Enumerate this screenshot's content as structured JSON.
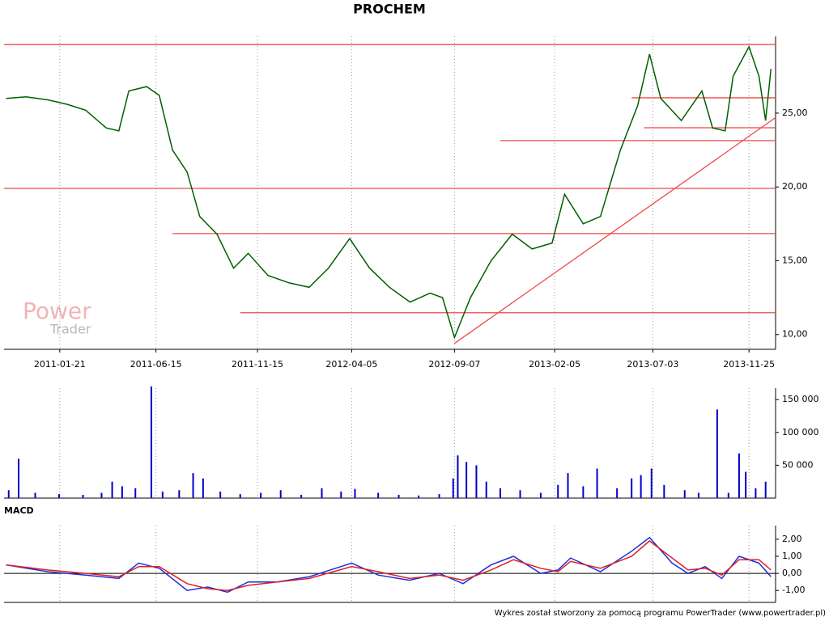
{
  "chart_data": [
    {
      "type": "line",
      "title": "PROCHEM",
      "color": "#006000",
      "xlim": [
        "2010-10-29",
        "2014-01-04"
      ],
      "xticks": [
        "2011-01-21",
        "2011-06-15",
        "2011-11-15",
        "2012-04-05",
        "2012-09-07",
        "2013-02-05",
        "2013-07-03",
        "2013-11-25"
      ],
      "ylim": [
        9,
        30.2
      ],
      "yticks": [
        {
          "value": 10,
          "label": "10,00"
        },
        {
          "value": 15,
          "label": "15,00"
        },
        {
          "value": 20,
          "label": "20,00"
        },
        {
          "value": 25,
          "label": "25,00"
        }
      ],
      "x": [
        "2010-11-01",
        "2010-12-01",
        "2011-01-03",
        "2011-02-01",
        "2011-03-01",
        "2011-04-01",
        "2011-04-20",
        "2011-05-05",
        "2011-06-01",
        "2011-06-20",
        "2011-07-10",
        "2011-08-01",
        "2011-08-20",
        "2011-09-15",
        "2011-10-10",
        "2011-11-01",
        "2011-12-01",
        "2012-01-02",
        "2012-02-01",
        "2012-03-01",
        "2012-04-02",
        "2012-05-02",
        "2012-06-01",
        "2012-07-02",
        "2012-08-01",
        "2012-08-20",
        "2012-09-07",
        "2012-10-01",
        "2012-11-01",
        "2012-12-03",
        "2013-01-02",
        "2013-02-01",
        "2013-02-20",
        "2013-03-20",
        "2013-04-15",
        "2013-05-15",
        "2013-06-10",
        "2013-06-28",
        "2013-07-15",
        "2013-08-15",
        "2013-09-15",
        "2013-10-01",
        "2013-10-20",
        "2013-11-01",
        "2013-11-25",
        "2013-12-10",
        "2013-12-20",
        "2013-12-28"
      ],
      "values": [
        26.0,
        26.1,
        25.9,
        25.6,
        25.2,
        24.0,
        23.8,
        26.5,
        26.8,
        26.2,
        22.5,
        21.0,
        18.0,
        16.8,
        14.5,
        15.5,
        14.0,
        13.5,
        13.2,
        14.5,
        16.5,
        14.5,
        13.2,
        12.2,
        12.8,
        12.5,
        9.8,
        12.5,
        15.0,
        16.8,
        15.8,
        16.2,
        19.5,
        17.5,
        18.0,
        22.5,
        25.5,
        29.0,
        26.0,
        24.5,
        26.5,
        24.0,
        23.8,
        27.5,
        29.5,
        27.5,
        24.5,
        28.0
      ],
      "annotation_color": "#f04848",
      "hlines": [
        {
          "value": 29.65,
          "from": "2010-10-29",
          "to": "2014-01-04"
        },
        {
          "value": 19.9,
          "from": "2010-10-29",
          "to": "2014-01-04"
        },
        {
          "value": 16.84,
          "from": "2011-07-10",
          "to": "2014-01-04"
        },
        {
          "value": 11.48,
          "from": "2011-10-20",
          "to": "2014-01-04"
        },
        {
          "value": 26.04,
          "from": "2013-06-01",
          "to": "2014-01-04"
        },
        {
          "value": 24.01,
          "from": "2013-06-20",
          "to": "2014-01-04"
        },
        {
          "value": 23.14,
          "from": "2012-11-15",
          "to": "2014-01-04"
        }
      ],
      "trendline": {
        "x": [
          "2012-09-07",
          "2014-01-04"
        ],
        "values": [
          9.4,
          24.7
        ]
      }
    },
    {
      "type": "bar",
      "color": "#0000cc",
      "ylim": [
        0,
        167500
      ],
      "yticks": [
        {
          "value": 50000,
          "label": "50 000"
        },
        {
          "value": 100000,
          "label": "100 000"
        },
        {
          "value": 150000,
          "label": "150 000"
        }
      ],
      "x": [
        "2010-11-05",
        "2010-11-20",
        "2010-12-15",
        "2011-01-20",
        "2011-02-25",
        "2011-03-25",
        "2011-04-10",
        "2011-04-25",
        "2011-05-15",
        "2011-06-08",
        "2011-06-25",
        "2011-07-20",
        "2011-08-10",
        "2011-08-25",
        "2011-09-20",
        "2011-10-20",
        "2011-11-20",
        "2011-12-20",
        "2012-01-20",
        "2012-02-20",
        "2012-03-20",
        "2012-04-10",
        "2012-05-15",
        "2012-06-15",
        "2012-07-15",
        "2012-08-15",
        "2012-09-05",
        "2012-09-12",
        "2012-09-25",
        "2012-10-10",
        "2012-10-25",
        "2012-11-15",
        "2012-12-15",
        "2013-01-15",
        "2013-02-10",
        "2013-02-25",
        "2013-03-20",
        "2013-04-10",
        "2013-05-10",
        "2013-06-01",
        "2013-06-15",
        "2013-07-01",
        "2013-07-20",
        "2013-08-20",
        "2013-09-10",
        "2013-10-08",
        "2013-10-25",
        "2013-11-10",
        "2013-11-20",
        "2013-12-05",
        "2013-12-20"
      ],
      "values": [
        12000,
        60000,
        8000,
        6000,
        5000,
        8000,
        25000,
        18000,
        15000,
        170000,
        10000,
        12000,
        38000,
        30000,
        10000,
        6000,
        8000,
        12000,
        5000,
        15000,
        10000,
        14000,
        8000,
        5000,
        4000,
        6000,
        30000,
        65000,
        55000,
        50000,
        25000,
        15000,
        12000,
        8000,
        20000,
        38000,
        18000,
        45000,
        15000,
        30000,
        35000,
        45000,
        20000,
        12000,
        8000,
        135000,
        8000,
        68000,
        40000,
        15000,
        25000
      ]
    },
    {
      "type": "line",
      "title": "MACD",
      "ylim": [
        -1.7,
        2.8
      ],
      "yticks": [
        {
          "value": -1,
          "label": "-1,00"
        },
        {
          "value": 0,
          "label": "0,00"
        },
        {
          "value": 1,
          "label": "1,00"
        },
        {
          "value": 2,
          "label": "2,00"
        }
      ],
      "x": [
        "2010-11-01",
        "2011-01-03",
        "2011-03-01",
        "2011-04-20",
        "2011-05-20",
        "2011-06-20",
        "2011-08-01",
        "2011-09-01",
        "2011-10-01",
        "2011-11-01",
        "2011-12-15",
        "2012-02-01",
        "2012-04-05",
        "2012-05-15",
        "2012-07-01",
        "2012-08-15",
        "2012-09-20",
        "2012-11-01",
        "2012-12-05",
        "2013-01-15",
        "2013-02-10",
        "2013-03-01",
        "2013-04-15",
        "2013-06-01",
        "2013-06-28",
        "2013-08-01",
        "2013-08-25",
        "2013-09-20",
        "2013-10-15",
        "2013-11-10",
        "2013-12-10",
        "2013-12-28"
      ],
      "series": [
        {
          "color": "#1a2ee0",
          "values": [
            0.5,
            0.1,
            -0.1,
            -0.3,
            0.6,
            0.3,
            -1.0,
            -0.8,
            -1.1,
            -0.5,
            -0.5,
            -0.2,
            0.6,
            -0.1,
            -0.4,
            0.0,
            -0.6,
            0.5,
            1.0,
            0.0,
            0.2,
            0.9,
            0.1,
            1.3,
            2.1,
            0.6,
            0.0,
            0.4,
            -0.3,
            1.0,
            0.6,
            -0.2
          ]
        },
        {
          "color": "#e02020",
          "values": [
            0.5,
            0.2,
            0.0,
            -0.2,
            0.4,
            0.4,
            -0.6,
            -0.9,
            -1.0,
            -0.7,
            -0.5,
            -0.3,
            0.4,
            0.1,
            -0.3,
            -0.1,
            -0.4,
            0.2,
            0.8,
            0.3,
            0.1,
            0.7,
            0.3,
            1.0,
            1.9,
            0.9,
            0.2,
            0.3,
            -0.1,
            0.8,
            0.8,
            0.2
          ]
        }
      ]
    }
  ],
  "watermark": [
    "Power",
    "Trader"
  ],
  "footer": "Wykres został stworzony za pomocą programu PowerTrader (www.powertrader.pl)"
}
